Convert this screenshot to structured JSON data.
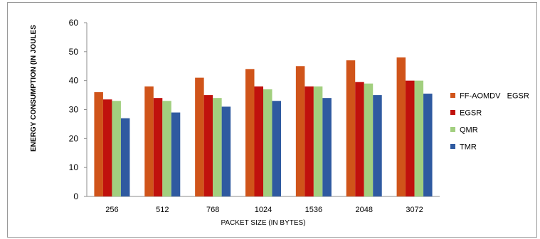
{
  "chart_data": {
    "type": "bar",
    "title": "",
    "xlabel": "PACKET SIZE (IN BYTES)",
    "ylabel": "ENERGY CONSUMPTION (IN JOULES",
    "ylim": [
      0,
      60
    ],
    "yticks": [
      0,
      10,
      20,
      30,
      40,
      50,
      60
    ],
    "grid": false,
    "legend_position": "right",
    "categories": [
      "256",
      "512",
      "768",
      "1024",
      "1536",
      "2048",
      "3072"
    ],
    "series": [
      {
        "name": "FF-AOMDV   EGSR",
        "color": "#d0541a",
        "values": [
          36,
          38,
          41,
          44,
          45,
          47,
          48
        ]
      },
      {
        "name": "EGSR",
        "color": "#c0110d",
        "values": [
          33.5,
          34,
          35,
          38,
          38,
          39.5,
          40
        ]
      },
      {
        "name": "QMR",
        "color": "#a2cf7f",
        "values": [
          33,
          33,
          34,
          37,
          38,
          39,
          40
        ]
      },
      {
        "name": "TMR",
        "color": "#2f5aa0",
        "values": [
          27,
          29,
          31,
          33,
          34,
          35,
          35.5
        ]
      }
    ]
  }
}
